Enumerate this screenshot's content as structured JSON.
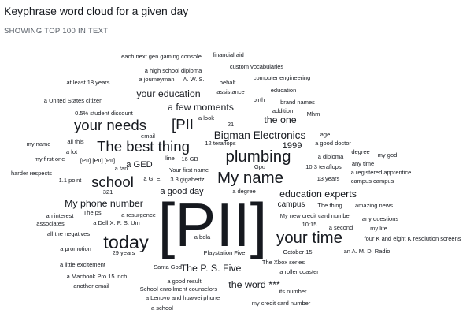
{
  "header": {
    "title": "Keyphrase word cloud for a given day",
    "subtitle": "SHOWING TOP 100 IN TEXT"
  },
  "chart_data": {
    "type": "word_cloud",
    "words": [
      {
        "text": "[PII]",
        "weight": 100
      },
      {
        "text": "today",
        "weight": 38
      },
      {
        "text": "your time",
        "weight": 33
      },
      {
        "text": "plumbing",
        "weight": 33
      },
      {
        "text": "My name",
        "weight": 33
      },
      {
        "text": "The best thing",
        "weight": 30
      },
      {
        "text": "your needs",
        "weight": 30
      },
      {
        "text": "[PII",
        "weight": 30
      },
      {
        "text": "school",
        "weight": 30
      },
      {
        "text": "Bigman Electronics",
        "weight": 22
      },
      {
        "text": "My phone number",
        "weight": 20
      },
      {
        "text": "education experts",
        "weight": 20
      },
      {
        "text": "a few moments",
        "weight": 20
      },
      {
        "text": "your education",
        "weight": 20
      },
      {
        "text": "the one",
        "weight": 20
      },
      {
        "text": "The P. S. Five",
        "weight": 20
      },
      {
        "text": "the word ***",
        "weight": 20
      },
      {
        "text": "1999",
        "weight": 18
      },
      {
        "text": "a good day",
        "weight": 18
      },
      {
        "text": "campus",
        "weight": 16
      },
      {
        "text": "a GED",
        "weight": 18
      },
      {
        "text": "each next gen gaming console",
        "weight": 6
      },
      {
        "text": "financial aid",
        "weight": 6
      },
      {
        "text": "custom vocabularies",
        "weight": 6
      },
      {
        "text": "a high school diploma",
        "weight": 6
      },
      {
        "text": "a joumeyman",
        "weight": 6
      },
      {
        "text": "A. W. S.",
        "weight": 6
      },
      {
        "text": "behalf",
        "weight": 6
      },
      {
        "text": "computer engineering",
        "weight": 6
      },
      {
        "text": "at least 18 years",
        "weight": 6
      },
      {
        "text": "assistance",
        "weight": 6
      },
      {
        "text": "education",
        "weight": 6
      },
      {
        "text": "birth",
        "weight": 6
      },
      {
        "text": "brand names",
        "weight": 6
      },
      {
        "text": "a United States citizen",
        "weight": 6
      },
      {
        "text": "addition",
        "weight": 6
      },
      {
        "text": "0.5% student discount",
        "weight": 6
      },
      {
        "text": "a look",
        "weight": 6
      },
      {
        "text": "Mhm",
        "weight": 6
      },
      {
        "text": "21",
        "weight": 6
      },
      {
        "text": "email",
        "weight": 6
      },
      {
        "text": "age",
        "weight": 6
      },
      {
        "text": "my name",
        "weight": 6
      },
      {
        "text": "all this",
        "weight": 6
      },
      {
        "text": "12 teraflops",
        "weight": 6
      },
      {
        "text": "a good doctor",
        "weight": 6
      },
      {
        "text": "a lot",
        "weight": 6
      },
      {
        "text": "degree",
        "weight": 6
      },
      {
        "text": "a diploma",
        "weight": 6
      },
      {
        "text": "my god",
        "weight": 6
      },
      {
        "text": "my first one",
        "weight": 6
      },
      {
        "text": "[PII] [PII] [PII]",
        "weight": 6
      },
      {
        "text": "line",
        "weight": 6
      },
      {
        "text": "16 GB",
        "weight": 6
      },
      {
        "text": "any time",
        "weight": 6
      },
      {
        "text": "a fan",
        "weight": 6
      },
      {
        "text": "Your first name",
        "weight": 6
      },
      {
        "text": "Gpu",
        "weight": 6
      },
      {
        "text": "10.3 teraflops",
        "weight": 6
      },
      {
        "text": "a registered apprentice",
        "weight": 6
      },
      {
        "text": "harder respects",
        "weight": 6
      },
      {
        "text": "1.1 point",
        "weight": 6
      },
      {
        "text": "a G. E.",
        "weight": 6
      },
      {
        "text": "3.8 gigahertz",
        "weight": 6
      },
      {
        "text": "13 years",
        "weight": 6
      },
      {
        "text": "campus campus",
        "weight": 6
      },
      {
        "text": "321",
        "weight": 6
      },
      {
        "text": "a degree",
        "weight": 6
      },
      {
        "text": "The thing",
        "weight": 6
      },
      {
        "text": "amazing news",
        "weight": 6
      },
      {
        "text": "The psi",
        "weight": 6
      },
      {
        "text": "an interest",
        "weight": 6
      },
      {
        "text": "a resurgence",
        "weight": 6
      },
      {
        "text": "My new credit card number",
        "weight": 6
      },
      {
        "text": "any questions",
        "weight": 6
      },
      {
        "text": "associates",
        "weight": 6
      },
      {
        "text": "a Dell X. P. S. Um",
        "weight": 6
      },
      {
        "text": "10:15",
        "weight": 6
      },
      {
        "text": "a second",
        "weight": 6
      },
      {
        "text": "my life",
        "weight": 6
      },
      {
        "text": "all the negatives",
        "weight": 6
      },
      {
        "text": "a bola",
        "weight": 6
      },
      {
        "text": "four K and eight K resolution screens",
        "weight": 6
      },
      {
        "text": "a promotion",
        "weight": 6
      },
      {
        "text": "29 years",
        "weight": 6
      },
      {
        "text": "Playstation Five",
        "weight": 6
      },
      {
        "text": "October 15",
        "weight": 6
      },
      {
        "text": "an A. M. D. Radio",
        "weight": 6
      },
      {
        "text": "a little excitement",
        "weight": 6
      },
      {
        "text": "Santa God",
        "weight": 6
      },
      {
        "text": "The Xbox series",
        "weight": 6
      },
      {
        "text": "a Macbook Pro 15 inch",
        "weight": 6
      },
      {
        "text": "a roller coaster",
        "weight": 6
      },
      {
        "text": "another email",
        "weight": 6
      },
      {
        "text": "a good result",
        "weight": 6
      },
      {
        "text": "School enrollment counselors",
        "weight": 6
      },
      {
        "text": "its number",
        "weight": 6
      },
      {
        "text": "a Lenovo and huawei phone",
        "weight": 6
      },
      {
        "text": "my credit card number",
        "weight": 6
      },
      {
        "text": "a school",
        "weight": 6
      }
    ]
  }
}
